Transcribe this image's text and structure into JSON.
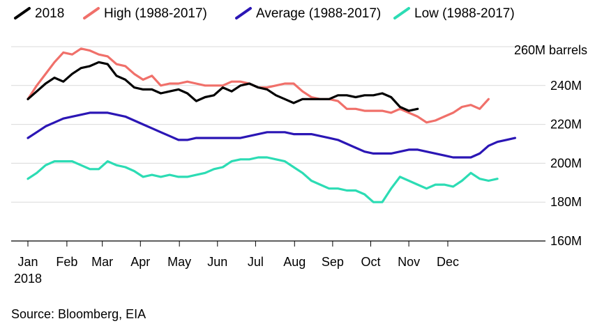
{
  "chart_data": {
    "type": "line",
    "title": "",
    "xlabel": "",
    "ylabel": "",
    "y_unit_label": "260M barrels",
    "ylim": [
      160,
      260
    ],
    "y_ticks": [
      {
        "value": 160,
        "label": "160M"
      },
      {
        "value": 180,
        "label": "180M"
      },
      {
        "value": 200,
        "label": "200M"
      },
      {
        "value": 220,
        "label": "220M"
      },
      {
        "value": 240,
        "label": "240M"
      }
    ],
    "x_ticks": [
      {
        "week": 0,
        "label": "Jan",
        "sublabel": "2018"
      },
      {
        "week": 4.4,
        "label": "Feb"
      },
      {
        "week": 8.4,
        "label": "Mar"
      },
      {
        "week": 12.7,
        "label": "Apr"
      },
      {
        "week": 17.1,
        "label": "May"
      },
      {
        "week": 21.4,
        "label": "Jun"
      },
      {
        "week": 25.7,
        "label": "Jul"
      },
      {
        "week": 30.1,
        "label": "Aug"
      },
      {
        "week": 34.4,
        "label": "Sep"
      },
      {
        "week": 38.7,
        "label": "Oct"
      },
      {
        "week": 43.0,
        "label": "Nov"
      },
      {
        "week": 47.4,
        "label": "Dec"
      }
    ],
    "grid": true,
    "legend_position": "top",
    "series": [
      {
        "name": "2018",
        "color": "#000000",
        "values": [
          233,
          237,
          241,
          244,
          242,
          246,
          249,
          250,
          252,
          251,
          245,
          243,
          239,
          238,
          238,
          236,
          237,
          238,
          236,
          232,
          234,
          235,
          239,
          237,
          240,
          241,
          239,
          238,
          235,
          233,
          231,
          233,
          233,
          233,
          233,
          235,
          235,
          234,
          235,
          235,
          236,
          234,
          229,
          227,
          228
        ]
      },
      {
        "name": "High (1988-2017)",
        "color": "#f0706a",
        "values": [
          233,
          240,
          246,
          252,
          257,
          256,
          259,
          258,
          256,
          255,
          251,
          250,
          246,
          243,
          245,
          240,
          241,
          241,
          242,
          241,
          240,
          240,
          240,
          242,
          242,
          241,
          239,
          239,
          240,
          241,
          241,
          237,
          234,
          233,
          233,
          232,
          228,
          228,
          227,
          227,
          227,
          226,
          228,
          226,
          224,
          221,
          222,
          224,
          226,
          229,
          230,
          228,
          233
        ]
      },
      {
        "name": "Average (1988-2017)",
        "color": "#2b16b5",
        "values": [
          213,
          216,
          219,
          221,
          223,
          224,
          225,
          226,
          226,
          226,
          225,
          224,
          222,
          220,
          218,
          216,
          214,
          212,
          212,
          213,
          213,
          213,
          213,
          213,
          213,
          214,
          215,
          216,
          216,
          216,
          215,
          215,
          215,
          214,
          213,
          212,
          210,
          208,
          206,
          205,
          205,
          205,
          206,
          207,
          207,
          206,
          205,
          204,
          203,
          203,
          203,
          205,
          209,
          211,
          212,
          213
        ]
      },
      {
        "name": "Low (1988-2017)",
        "color": "#2cdcb4",
        "values": [
          192,
          195,
          199,
          201,
          201,
          201,
          199,
          197,
          197,
          201,
          199,
          198,
          196,
          193,
          194,
          193,
          194,
          193,
          193,
          194,
          195,
          197,
          198,
          201,
          202,
          202,
          203,
          203,
          202,
          201,
          198,
          195,
          191,
          189,
          187,
          187,
          186,
          186,
          184,
          180,
          180,
          187,
          193,
          191,
          189,
          187,
          189,
          189,
          188,
          191,
          195,
          192,
          191,
          192
        ]
      }
    ]
  },
  "footer": {
    "source": "Source: Bloomberg, EIA"
  }
}
